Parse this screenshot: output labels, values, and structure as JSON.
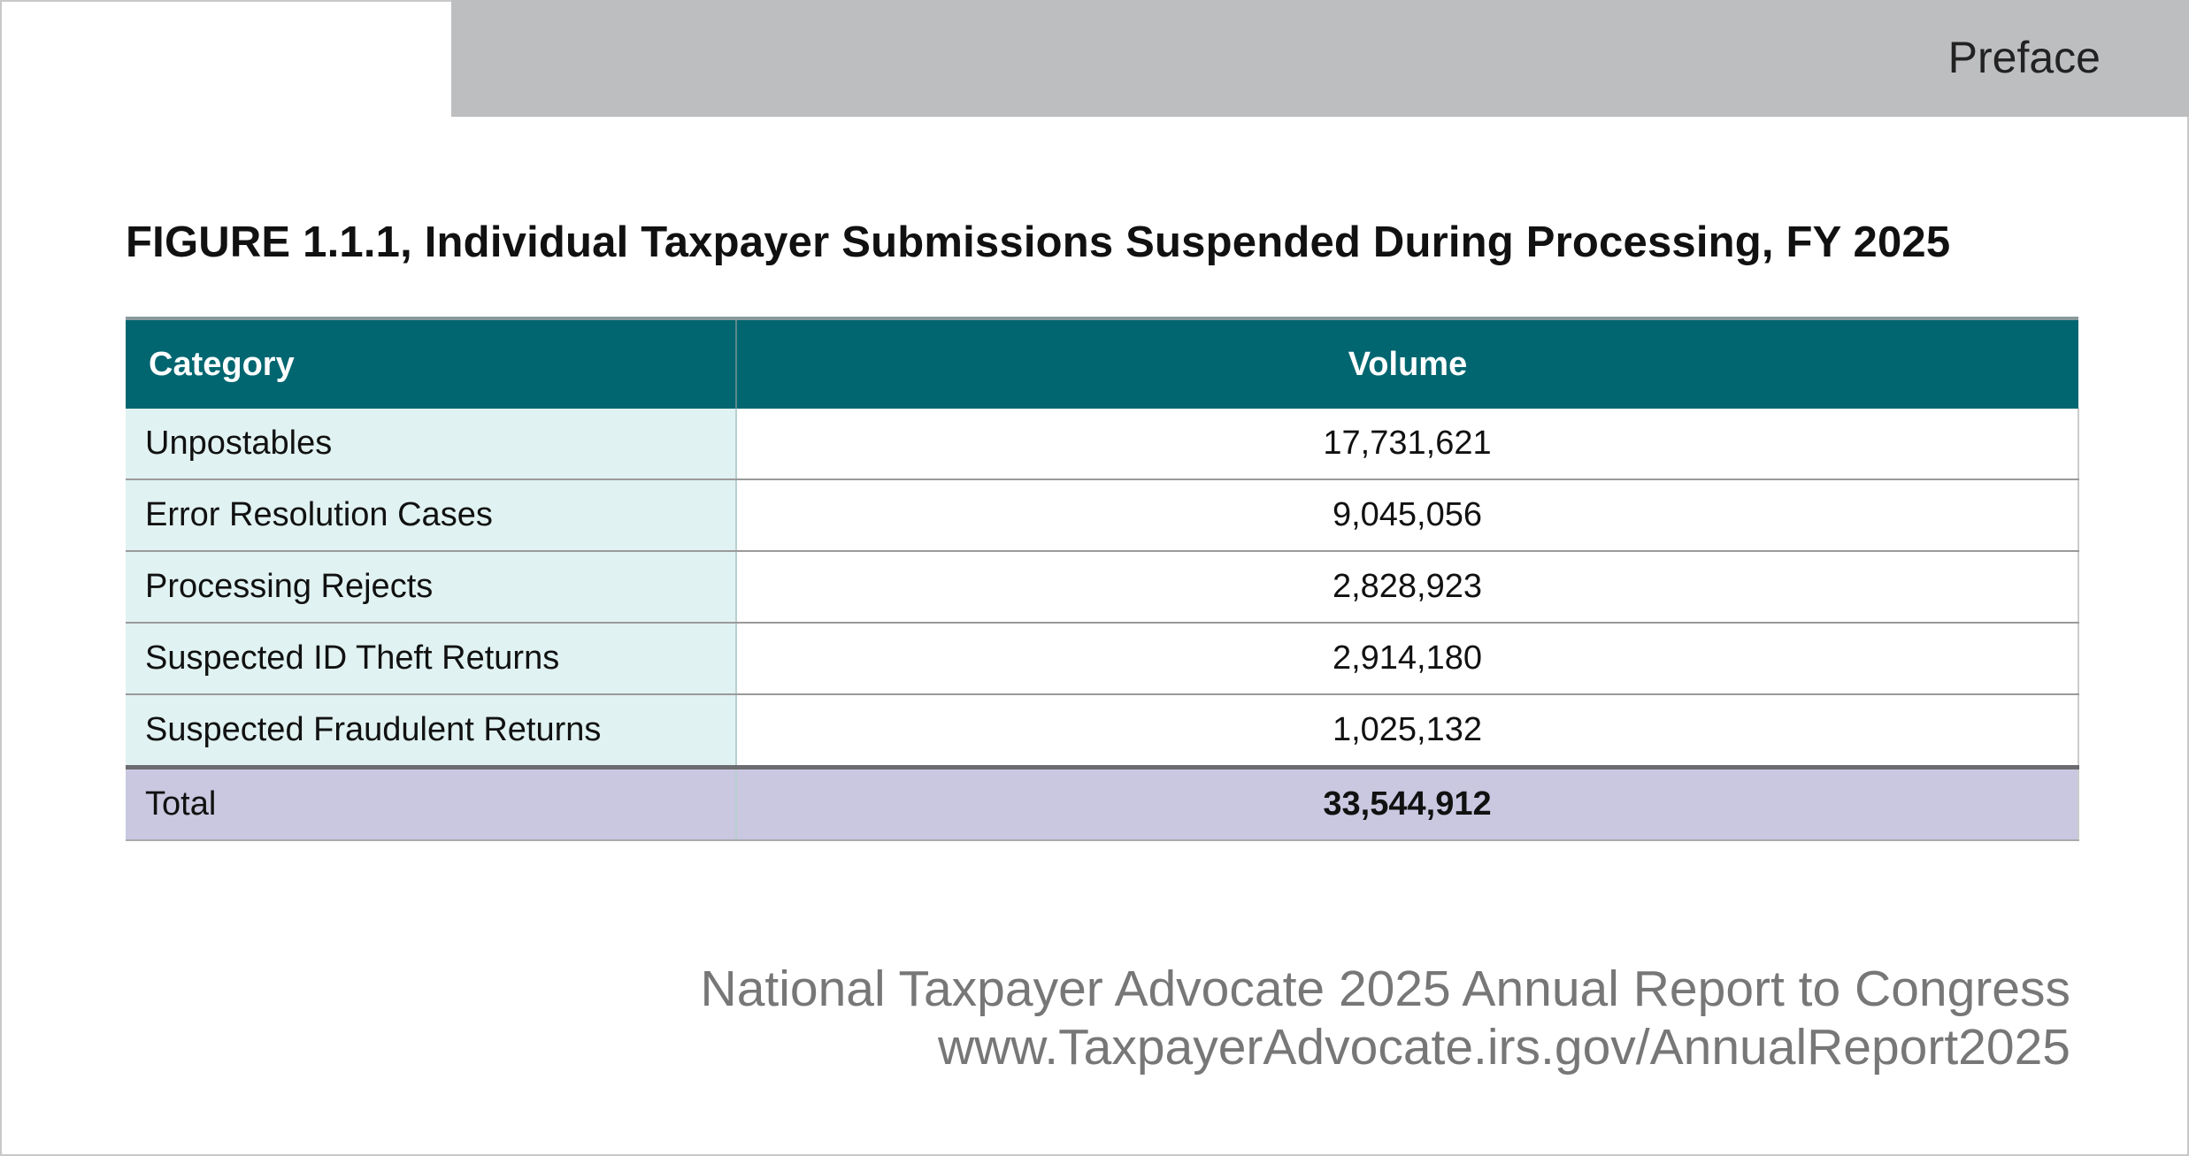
{
  "header": {
    "section_label": "Preface"
  },
  "figure": {
    "title": "FIGURE 1.1.1, Individual Taxpayer Submissions Suspended During Processing, FY 2025",
    "columns": [
      "Category",
      "Volume"
    ],
    "rows": [
      {
        "category": "Unpostables",
        "volume": "17,731,621"
      },
      {
        "category": "Error Resolution Cases",
        "volume": "9,045,056"
      },
      {
        "category": "Processing Rejects",
        "volume": "2,828,923"
      },
      {
        "category": "Suspected ID Theft Returns",
        "volume": "2,914,180"
      },
      {
        "category": "Suspected Fraudulent Returns",
        "volume": "1,025,132"
      }
    ],
    "total": {
      "category": "Total",
      "volume": "33,544,912"
    }
  },
  "footer": {
    "line1": "National Taxpayer Advocate 2025 Annual Report to Congress",
    "line2": "www.TaxpayerAdvocate.irs.gov/AnnualReport2025"
  },
  "colors": {
    "header_bg": "#016670",
    "category_bg": "#e0f2f1",
    "total_bg": "#c9c8e0",
    "band_bg": "#bdbec0"
  }
}
